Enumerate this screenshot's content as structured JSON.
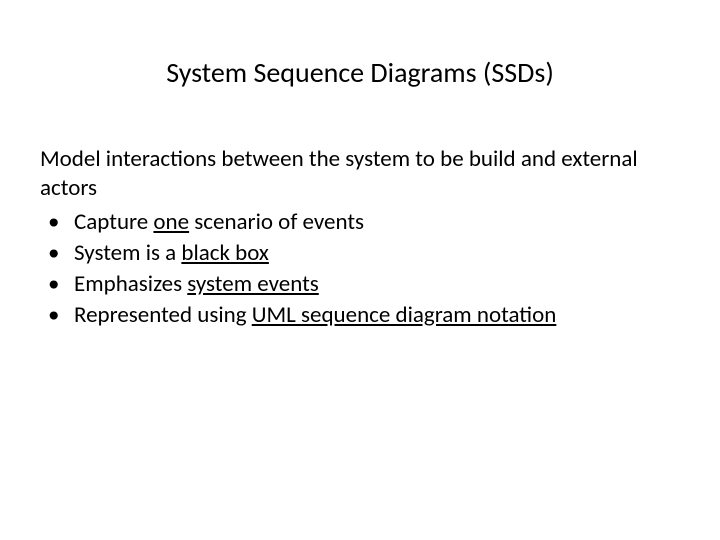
{
  "slide": {
    "title": "System Sequence Diagrams (SSDs)",
    "intro": "Model interactions between the system to be build and external actors",
    "bullets": [
      {
        "pre": "Capture ",
        "u": "one",
        "post": " scenario of events"
      },
      {
        "pre": "System is a ",
        "u": "black box",
        "post": ""
      },
      {
        "pre": "Emphasizes ",
        "u": "system events",
        "post": ""
      },
      {
        "pre": "Represented using ",
        "u": "UML sequence diagram notation",
        "post": ""
      }
    ],
    "colors": {
      "background": "#ffffff",
      "text": "#000000"
    },
    "typography": {
      "title_fontsize": 28,
      "body_fontsize": 23,
      "font_family": "Calibri"
    }
  }
}
